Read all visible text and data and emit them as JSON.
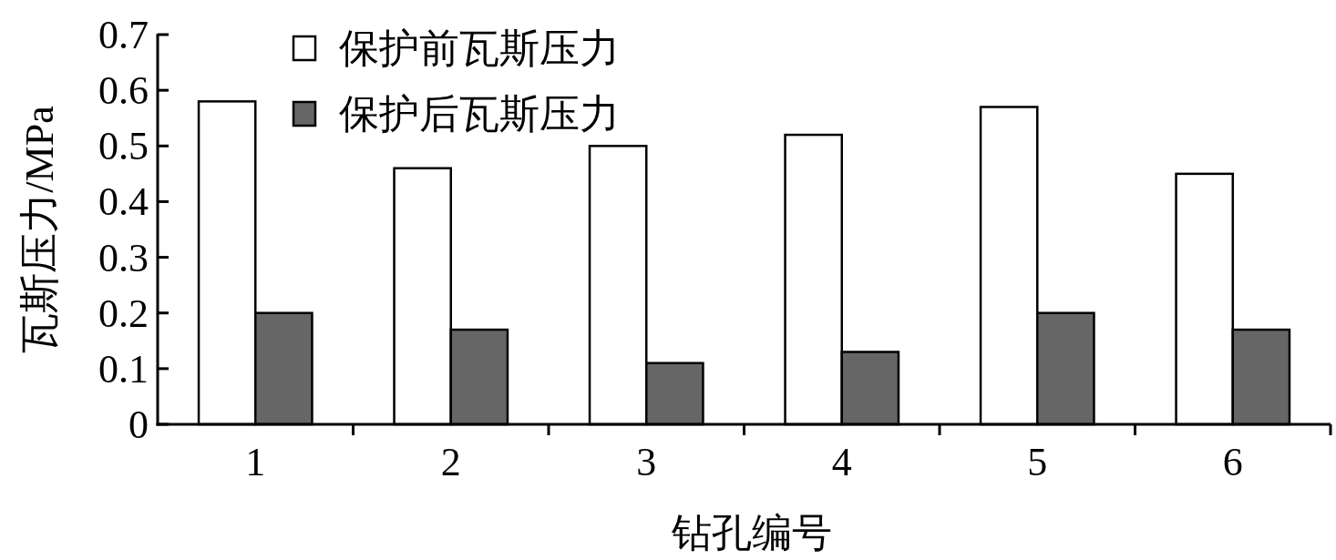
{
  "chart_data": {
    "type": "bar",
    "xlabel": "钻孔编号",
    "ylabel": "瓦斯压力/MPa",
    "categories": [
      "1",
      "2",
      "3",
      "4",
      "5",
      "6"
    ],
    "series": [
      {
        "name": "保护前瓦斯压力",
        "color": "#ffffff",
        "values": [
          0.58,
          0.46,
          0.5,
          0.52,
          0.57,
          0.45
        ]
      },
      {
        "name": "保护后瓦斯压力",
        "color": "#666666",
        "values": [
          0.2,
          0.17,
          0.11,
          0.13,
          0.2,
          0.17
        ]
      }
    ],
    "ylim": [
      0,
      0.7
    ],
    "yticks": [
      0,
      0.1,
      0.2,
      0.3,
      0.4,
      0.5,
      0.6,
      0.7
    ],
    "grid": false,
    "legend": "top left"
  }
}
